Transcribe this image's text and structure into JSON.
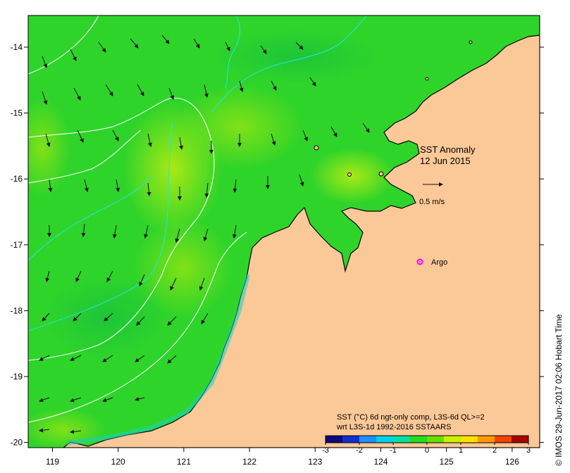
{
  "map": {
    "title_line1": "SST Anomaly",
    "title_line2": "12 Jun 2015",
    "vector_scale_label": "0.5 m/s",
    "argo_label": "Argo",
    "lon_ticks": [
      "119",
      "120",
      "121",
      "122",
      "123",
      "124",
      "125",
      "126"
    ],
    "lat_ticks": [
      "-14",
      "-15",
      "-16",
      "-17",
      "-18",
      "-19",
      "-20"
    ],
    "colorbar": {
      "caption_line1": "SST (°C) 6d ngt-only comp, L3S-6d QL>=2",
      "caption_line2": "wrt L3S-1d 1992-2016 SSTAARS",
      "ticks": [
        "-3",
        "-2",
        "-1",
        "0",
        "1",
        "2",
        "3"
      ],
      "colors": [
        "#0a0a7a",
        "#0f2fd0",
        "#1e90ff",
        "#00d0e8",
        "#00e0a0",
        "#22dd22",
        "#66e000",
        "#c8f000",
        "#ffe000",
        "#ff9900",
        "#ee4400",
        "#aa0000"
      ]
    },
    "credit": "© IMOS 29-Jun-2017 02:06 Hobart Time",
    "colors": {
      "land": "#fbc898",
      "ocean": "#2fd42a",
      "ocean_warm": "#7fe21a",
      "coast_cyan": "#16cfc4",
      "contour_white": "#ffffff",
      "contour_cyan": "#21e6e6",
      "argo": "#ff00ff"
    }
  }
}
